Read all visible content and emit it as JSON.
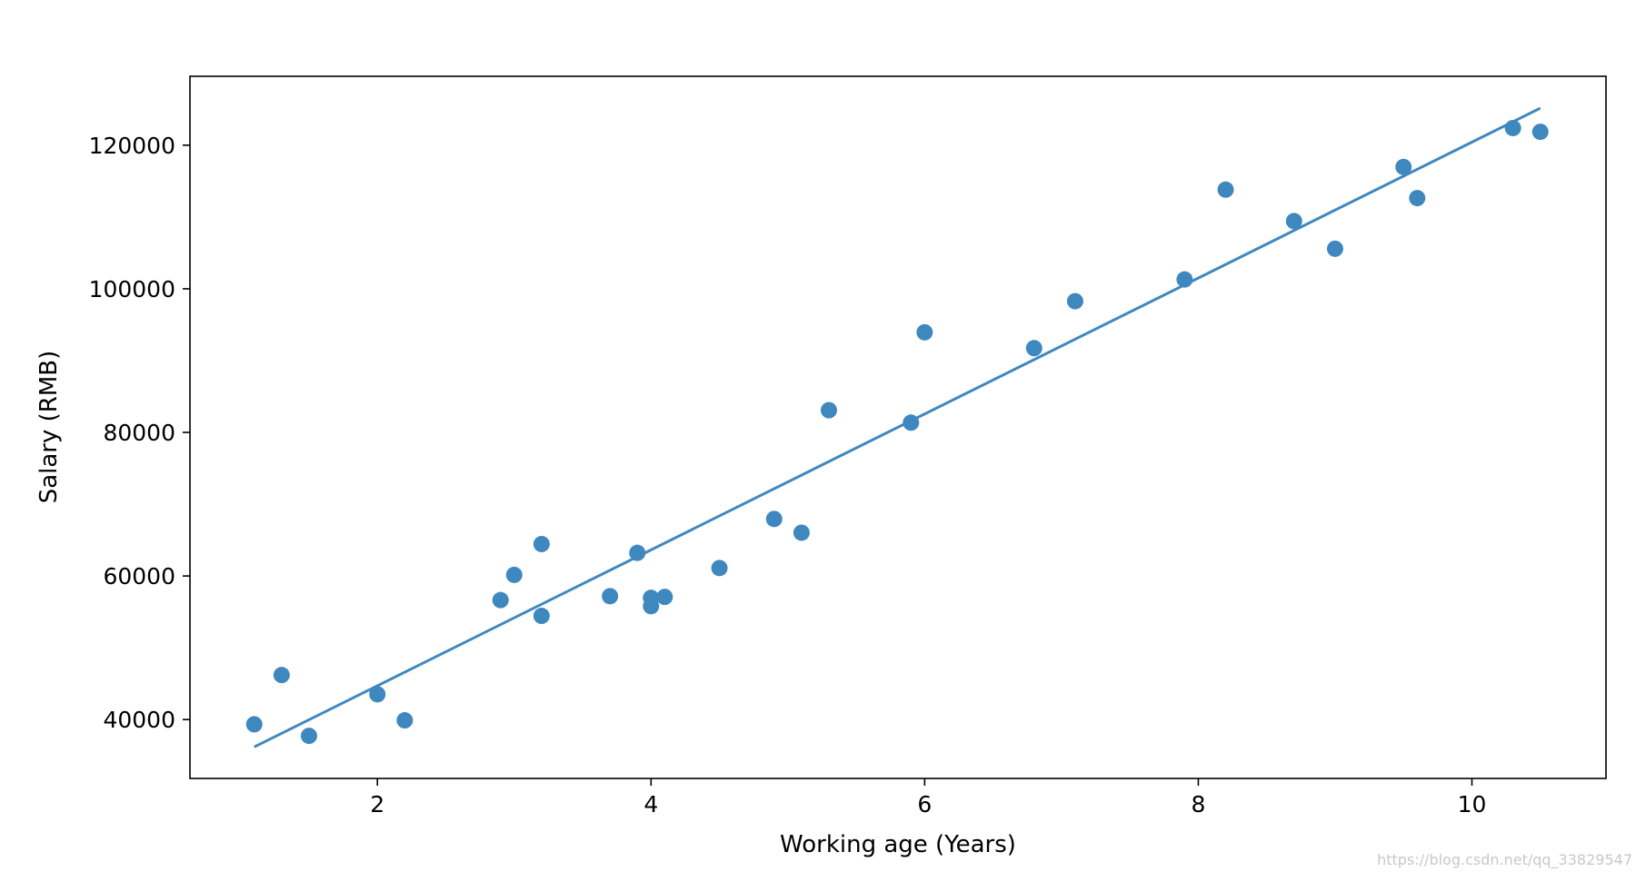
{
  "chart_data": {
    "type": "scatter",
    "title": "",
    "xlabel": "Working age (Years)",
    "ylabel": "Salary (RMB)",
    "xlim": [
      0.63,
      10.98
    ],
    "ylim": [
      31800,
      129600
    ],
    "xticks": [
      2,
      4,
      6,
      8,
      10
    ],
    "yticks": [
      40000,
      60000,
      80000,
      100000,
      120000
    ],
    "grid": false,
    "legend": "none",
    "series": [
      {
        "type": "scatter",
        "color": "#3f88bf",
        "points": [
          {
            "x": 1.1,
            "y": 39343
          },
          {
            "x": 1.3,
            "y": 46205
          },
          {
            "x": 1.5,
            "y": 37731
          },
          {
            "x": 2.0,
            "y": 43525
          },
          {
            "x": 2.2,
            "y": 39891
          },
          {
            "x": 2.9,
            "y": 56642
          },
          {
            "x": 3.0,
            "y": 60150
          },
          {
            "x": 3.2,
            "y": 54445
          },
          {
            "x": 3.2,
            "y": 64445
          },
          {
            "x": 3.7,
            "y": 57189
          },
          {
            "x": 3.9,
            "y": 63218
          },
          {
            "x": 4.0,
            "y": 55794
          },
          {
            "x": 4.0,
            "y": 56957
          },
          {
            "x": 4.1,
            "y": 57081
          },
          {
            "x": 4.5,
            "y": 61111
          },
          {
            "x": 4.9,
            "y": 67938
          },
          {
            "x": 5.1,
            "y": 66029
          },
          {
            "x": 5.3,
            "y": 83088
          },
          {
            "x": 5.9,
            "y": 81363
          },
          {
            "x": 6.0,
            "y": 93940
          },
          {
            "x": 6.8,
            "y": 91738
          },
          {
            "x": 7.1,
            "y": 98273
          },
          {
            "x": 7.9,
            "y": 101302
          },
          {
            "x": 8.2,
            "y": 113812
          },
          {
            "x": 8.7,
            "y": 109431
          },
          {
            "x": 9.0,
            "y": 105582
          },
          {
            "x": 9.5,
            "y": 116969
          },
          {
            "x": 9.6,
            "y": 112635
          },
          {
            "x": 10.3,
            "y": 122391
          },
          {
            "x": 10.5,
            "y": 121872
          }
        ]
      },
      {
        "type": "line",
        "color": "#3f88bf",
        "x": [
          1.1,
          10.5
        ],
        "y": [
          36188,
          125165
        ]
      }
    ]
  },
  "watermark": "https://blog.csdn.net/qq_33829547"
}
